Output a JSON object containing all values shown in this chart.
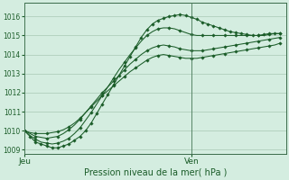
{
  "title": "",
  "xlabel": "Pression niveau de la mer( hPa )",
  "bg_color": "#d4ede0",
  "grid_color": "#a8c8b4",
  "line_color": "#1a5c28",
  "ylim": [
    1008.8,
    1016.7
  ],
  "xlim": [
    0,
    47
  ],
  "jeu_x": 0,
  "ven_x": 30,
  "tick_labels_y": [
    1009,
    1010,
    1011,
    1012,
    1013,
    1014,
    1015,
    1016
  ],
  "series": [
    [
      1010.0,
      1009.7,
      1009.4,
      1009.3,
      1009.2,
      1009.1,
      1009.1,
      1009.2,
      1009.3,
      1009.5,
      1009.7,
      1010.0,
      1010.4,
      1010.9,
      1011.4,
      1011.9,
      1012.4,
      1012.9,
      1013.4,
      1013.9,
      1014.4,
      1014.9,
      1015.3,
      1015.6,
      1015.8,
      1015.9,
      1016.0,
      1016.05,
      1016.1,
      1016.05,
      1015.95,
      1015.85,
      1015.7,
      1015.6,
      1015.5,
      1015.4,
      1015.3,
      1015.2,
      1015.15,
      1015.1,
      1015.05,
      1015.0,
      1015.0,
      1015.05,
      1015.1,
      1015.1,
      1015.1
    ],
    [
      1010.0,
      1009.75,
      1009.55,
      1009.4,
      1009.35,
      1009.3,
      1009.35,
      1009.45,
      1009.6,
      1009.85,
      1010.15,
      1010.55,
      1010.95,
      1011.4,
      1011.85,
      1012.3,
      1012.75,
      1013.2,
      1013.6,
      1014.0,
      1014.35,
      1014.7,
      1015.0,
      1015.2,
      1015.35,
      1015.4,
      1015.4,
      1015.35,
      1015.25,
      1015.15,
      1015.05,
      1015.0,
      1015.0,
      1015.0,
      1015.0,
      1015.0,
      1015.0,
      1015.0,
      1015.0,
      1015.0,
      1015.0,
      1015.0,
      1015.0,
      1015.0,
      1015.05,
      1015.1,
      1015.1
    ],
    [
      1010.0,
      1009.85,
      1009.7,
      1009.65,
      1009.6,
      1009.65,
      1009.7,
      1009.85,
      1010.05,
      1010.3,
      1010.6,
      1010.95,
      1011.3,
      1011.65,
      1012.0,
      1012.3,
      1012.6,
      1012.9,
      1013.2,
      1013.5,
      1013.75,
      1014.0,
      1014.2,
      1014.35,
      1014.45,
      1014.5,
      1014.45,
      1014.4,
      1014.3,
      1014.25,
      1014.2,
      1014.2,
      1014.2,
      1014.25,
      1014.3,
      1014.35,
      1014.4,
      1014.45,
      1014.5,
      1014.55,
      1014.6,
      1014.65,
      1014.7,
      1014.75,
      1014.8,
      1014.85,
      1014.9
    ],
    [
      1010.0,
      1009.9,
      1009.85,
      1009.85,
      1009.85,
      1009.9,
      1009.95,
      1010.05,
      1010.2,
      1010.4,
      1010.65,
      1010.95,
      1011.25,
      1011.55,
      1011.85,
      1012.1,
      1012.35,
      1012.6,
      1012.85,
      1013.1,
      1013.3,
      1013.5,
      1013.7,
      1013.85,
      1013.95,
      1014.0,
      1013.95,
      1013.9,
      1013.85,
      1013.8,
      1013.8,
      1013.8,
      1013.85,
      1013.9,
      1013.95,
      1014.0,
      1014.05,
      1014.1,
      1014.15,
      1014.2,
      1014.25,
      1014.3,
      1014.35,
      1014.4,
      1014.45,
      1014.5,
      1014.6
    ]
  ],
  "marker_series": [
    0,
    1,
    2,
    3
  ],
  "marker_every": [
    1,
    2,
    2,
    2
  ]
}
